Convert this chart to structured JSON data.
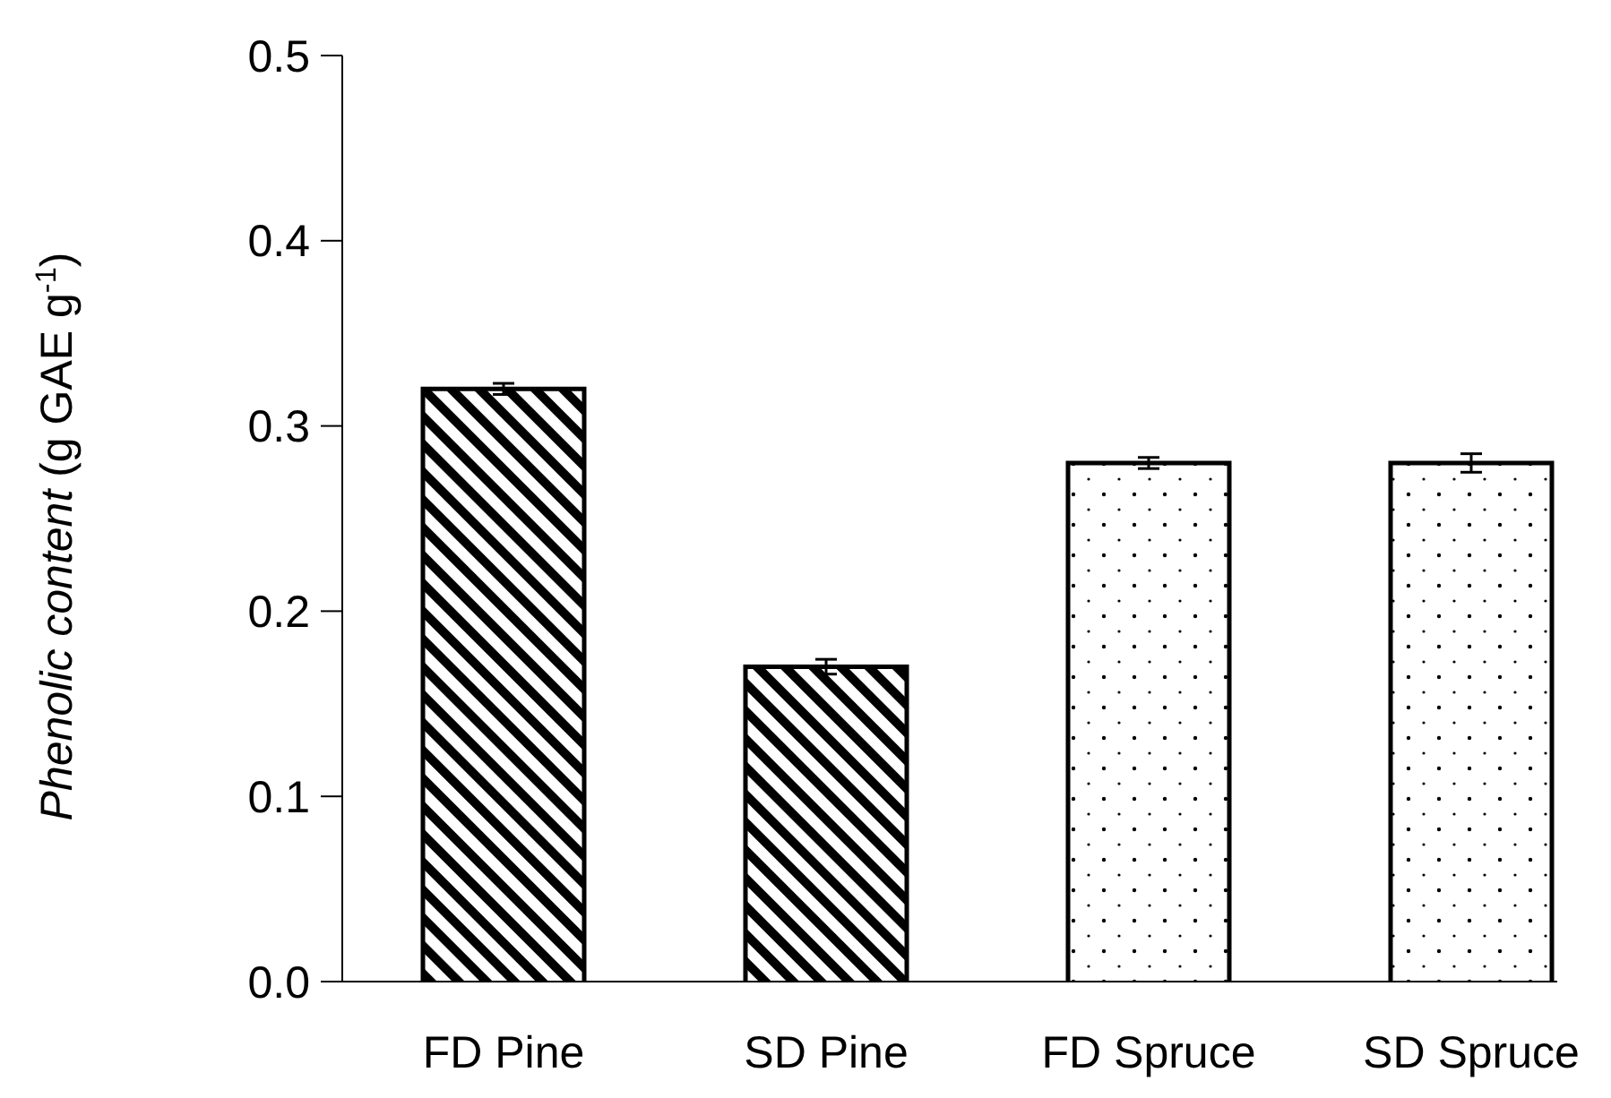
{
  "chart_data": {
    "type": "bar",
    "ylabel": "Phenolic content (g GAE g$^{-1}$)",
    "categories": [
      "FD Pine",
      "SD Pine",
      "FD Spruce",
      "SD Spruce"
    ],
    "values": [
      0.32,
      0.17,
      0.28,
      0.28
    ],
    "errors": [
      0.003,
      0.004,
      0.003,
      0.005
    ],
    "colors": [
      "#000000",
      "#000000",
      "#ffffff",
      "#ffffff"
    ],
    "ylim": [
      0,
      0.5
    ],
    "yticks": [
      {
        "value": 0,
        "label": "0.0"
      },
      0.1,
      0.2,
      0.3,
      0.4,
      0.5
    ],
    "grid": false
  }
}
